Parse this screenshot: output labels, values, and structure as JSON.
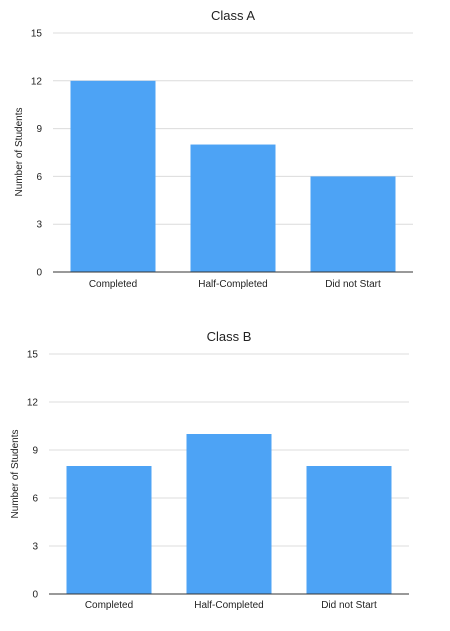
{
  "chart_data": [
    {
      "type": "bar",
      "title": "Class A",
      "xlabel": "",
      "ylabel": "Number of Students",
      "ylim": [
        0,
        15
      ],
      "yticks": [
        0,
        3,
        6,
        9,
        12,
        15
      ],
      "grid": true,
      "categories": [
        "Completed",
        "Half-Completed",
        "Did not Start"
      ],
      "values": [
        12,
        8,
        6
      ],
      "color": "#4da3f5"
    },
    {
      "type": "bar",
      "title": "Class B",
      "xlabel": "",
      "ylabel": "Number of Students",
      "ylim": [
        0,
        15
      ],
      "yticks": [
        0,
        3,
        6,
        9,
        12,
        15
      ],
      "grid": true,
      "categories": [
        "Completed",
        "Half-Completed",
        "Did not Start"
      ],
      "values": [
        8,
        10,
        8
      ],
      "color": "#4da3f5"
    }
  ]
}
